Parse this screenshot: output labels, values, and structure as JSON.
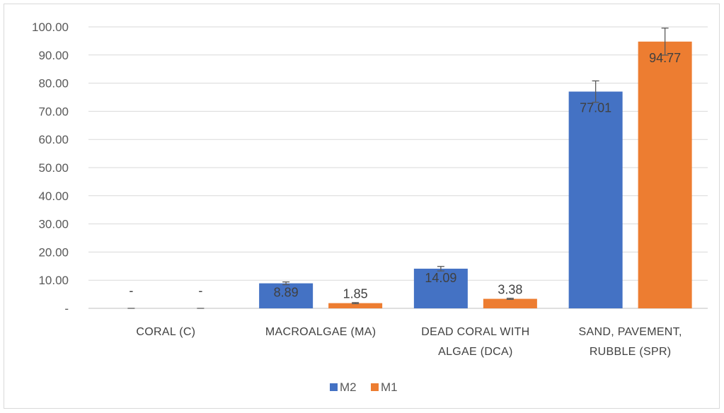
{
  "chart_data": {
    "type": "bar",
    "title": "",
    "xlabel": "",
    "ylabel": "",
    "ylim": [
      0,
      100
    ],
    "yticks": [
      {
        "value": 0,
        "label": "-"
      },
      {
        "value": 10,
        "label": "10.00"
      },
      {
        "value": 20,
        "label": "20.00"
      },
      {
        "value": 30,
        "label": "30.00"
      },
      {
        "value": 40,
        "label": "40.00"
      },
      {
        "value": 50,
        "label": "50.00"
      },
      {
        "value": 60,
        "label": "60.00"
      },
      {
        "value": 70,
        "label": "70.00"
      },
      {
        "value": 80,
        "label": "80.00"
      },
      {
        "value": 90,
        "label": "90.00"
      },
      {
        "value": 100,
        "label": "100.00"
      }
    ],
    "categories": [
      [
        "CORAL (C)"
      ],
      [
        "MACROALGAE (MA)"
      ],
      [
        "DEAD CORAL WITH",
        "ALGAE (DCA)"
      ],
      [
        "SAND, PAVEMENT,",
        "RUBBLE (SPR)"
      ]
    ],
    "series": [
      {
        "name": "M2",
        "color": "#4472c4",
        "values": [
          0,
          8.89,
          14.09,
          77.01
        ],
        "labels": [
          "-",
          "8.89",
          "14.09",
          "77.01"
        ],
        "errors": [
          0,
          0.5,
          0.8,
          3.8
        ]
      },
      {
        "name": "M1",
        "color": "#ed7d31",
        "values": [
          0,
          1.85,
          3.38,
          94.77
        ],
        "labels": [
          "-",
          "1.85",
          "3.38",
          "94.77"
        ],
        "errors": [
          0,
          0.2,
          0.2,
          4.8
        ]
      }
    ],
    "grid": true,
    "legend": "bottom-center"
  }
}
